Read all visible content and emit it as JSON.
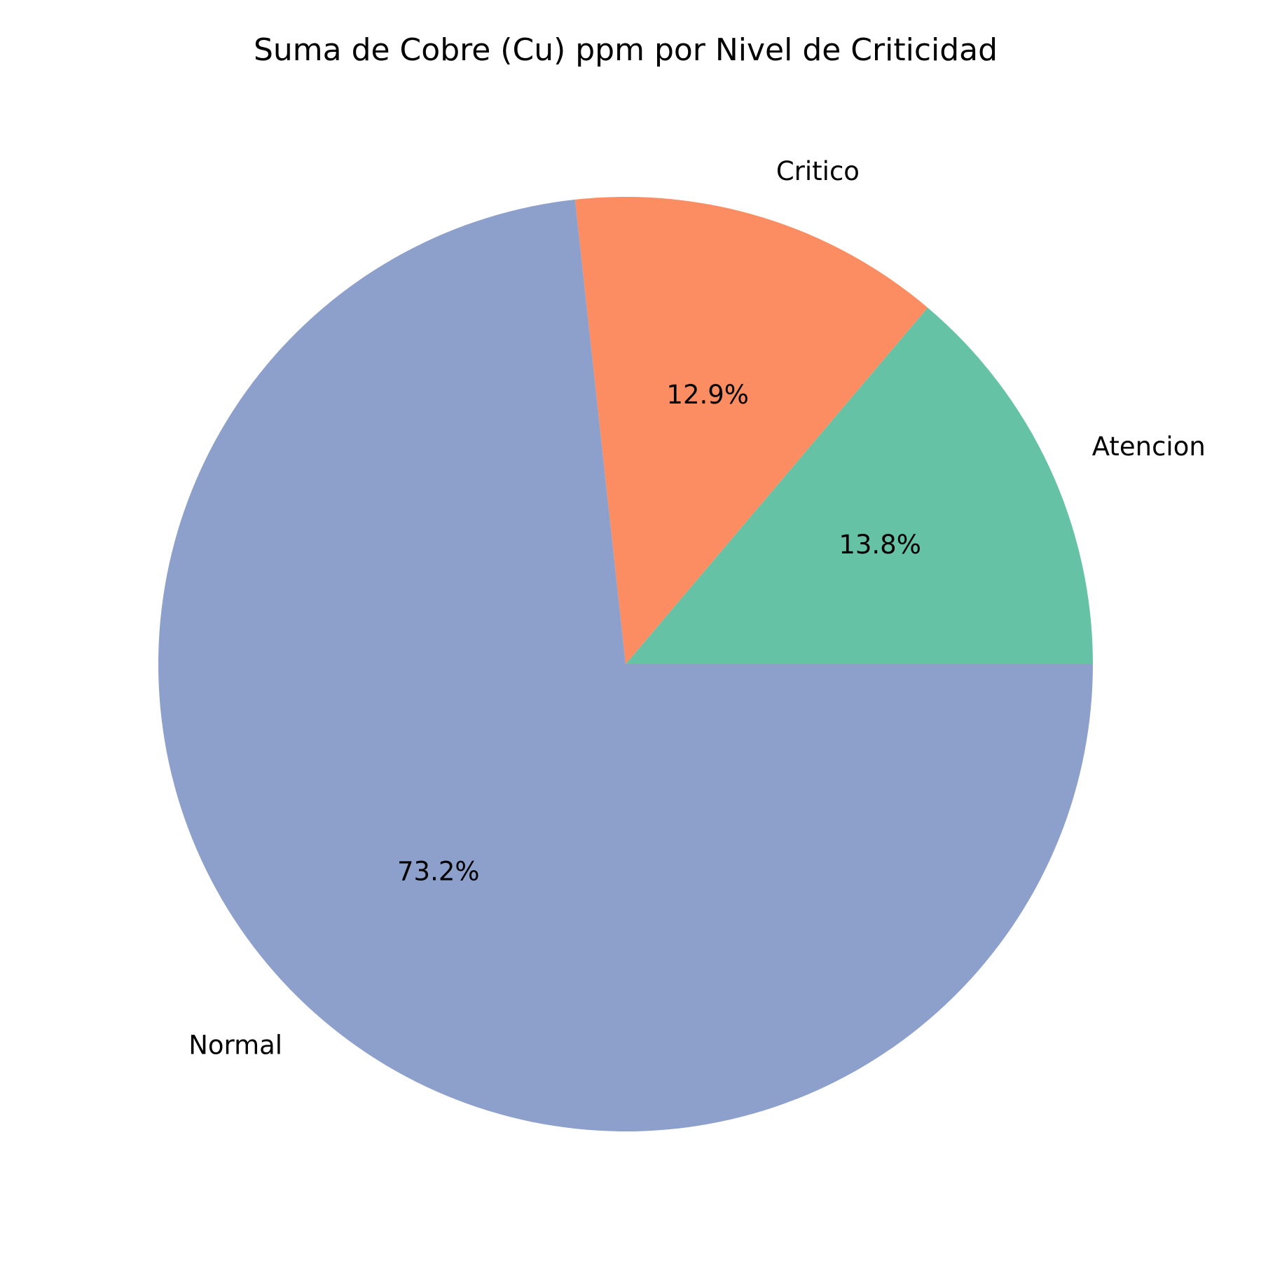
{
  "chart_data": {
    "type": "pie",
    "title": "Suma de Cobre (Cu) ppm por Nivel de Criticidad",
    "start_angle_deg": 0,
    "direction": "counterclockwise",
    "slices": [
      {
        "label": "Atencion",
        "value": 13.8,
        "pct_label": "13.8%",
        "color": "#66c2a5"
      },
      {
        "label": "Critico",
        "value": 12.9,
        "pct_label": "12.9%",
        "color": "#fc8d62"
      },
      {
        "label": "Normal",
        "value": 73.2,
        "pct_label": "73.2%",
        "color": "#8da0cb"
      }
    ]
  }
}
